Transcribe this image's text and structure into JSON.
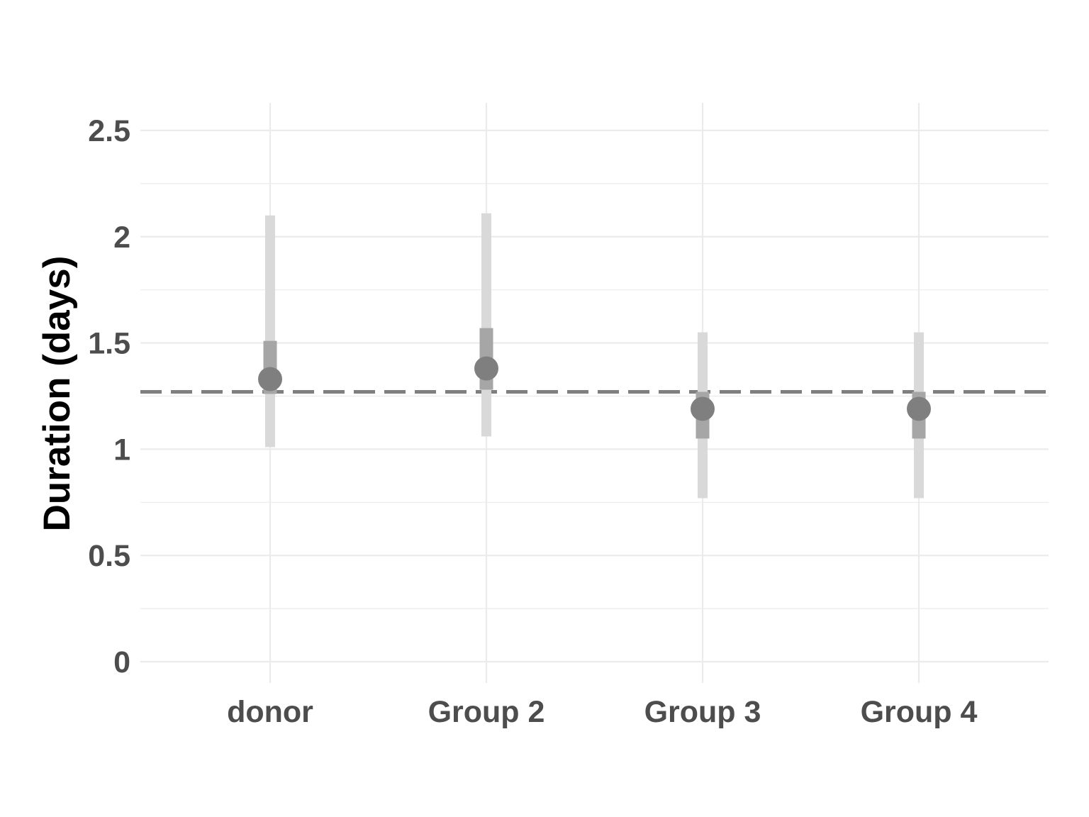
{
  "chart_data": {
    "type": "scatter",
    "ylabel": "Duration (days)",
    "xlabel": "",
    "title": "",
    "categories": [
      "donor",
      "Group 2",
      "Group 3",
      "Group 4"
    ],
    "y_ticks": [
      "0",
      "0.5",
      "1",
      "1.5",
      "2",
      "2.5"
    ],
    "ylim": [
      -0.1,
      2.63
    ],
    "grid": true,
    "series": [
      {
        "points": [
          {
            "x": "donor",
            "y": 1.33,
            "inner": [
              1.26,
              1.51
            ],
            "outer": [
              1.01,
              2.1
            ]
          },
          {
            "x": "Group 2",
            "y": 1.38,
            "inner": [
              1.28,
              1.57
            ],
            "outer": [
              1.06,
              2.11
            ]
          },
          {
            "x": "Group 3",
            "y": 1.19,
            "inner": [
              1.05,
              1.27
            ],
            "outer": [
              0.77,
              1.55
            ]
          },
          {
            "x": "Group 4",
            "y": 1.19,
            "inner": [
              1.05,
              1.27
            ],
            "outer": [
              0.77,
              1.55
            ]
          }
        ]
      }
    ],
    "reference_line": {
      "y": 1.27,
      "style": "dashed"
    },
    "colors": {
      "point": "#7f7f7f",
      "inner_interval": "#a6a6a6",
      "outer_interval": "#d9d9d9",
      "reference_line": "#7f7f7f",
      "grid": "#ebebeb"
    }
  }
}
